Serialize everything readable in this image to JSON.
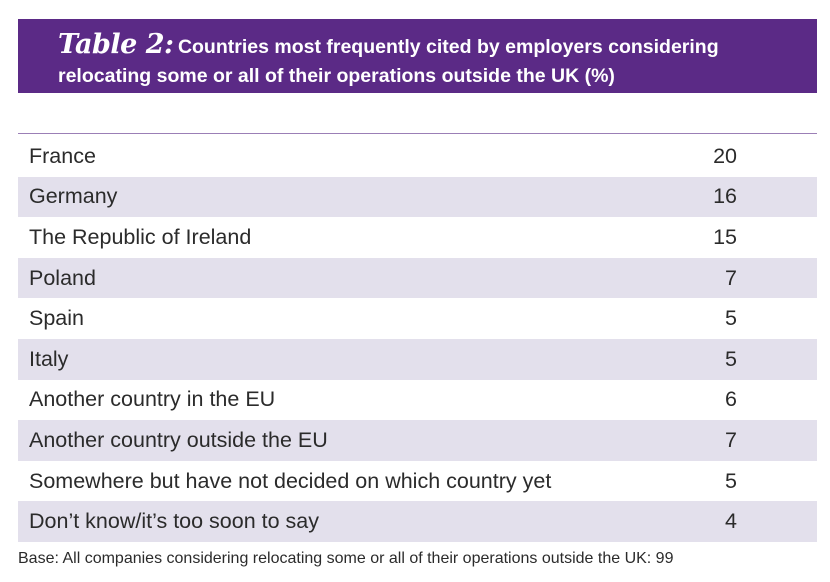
{
  "header": {
    "table_number": "Table 2:",
    "title_line1": "Countries most frequently cited by employers considering",
    "title_line2": "relocating some or all of their operations outside the UK (%)"
  },
  "chart_data": {
    "type": "table",
    "rows": [
      {
        "label": "France",
        "value": 20
      },
      {
        "label": "Germany",
        "value": 16
      },
      {
        "label": "The Republic of Ireland",
        "value": 15
      },
      {
        "label": "Poland",
        "value": 7
      },
      {
        "label": "Spain",
        "value": 5
      },
      {
        "label": "Italy",
        "value": 5
      },
      {
        "label": "Another country in the EU",
        "value": 6
      },
      {
        "label": "Another country outside the EU",
        "value": 7
      },
      {
        "label": "Somewhere but have not decided on which country yet",
        "value": 5
      },
      {
        "label": "Don’t know/it’s too soon to say",
        "value": 4
      }
    ]
  },
  "footer": {
    "base_note": "Base: All companies considering relocating some or all of their operations outside the UK: 99"
  },
  "colors": {
    "header_bg": "#5b2a86",
    "row_shade": "#e3e0ec",
    "rule": "#9b7fb6"
  }
}
